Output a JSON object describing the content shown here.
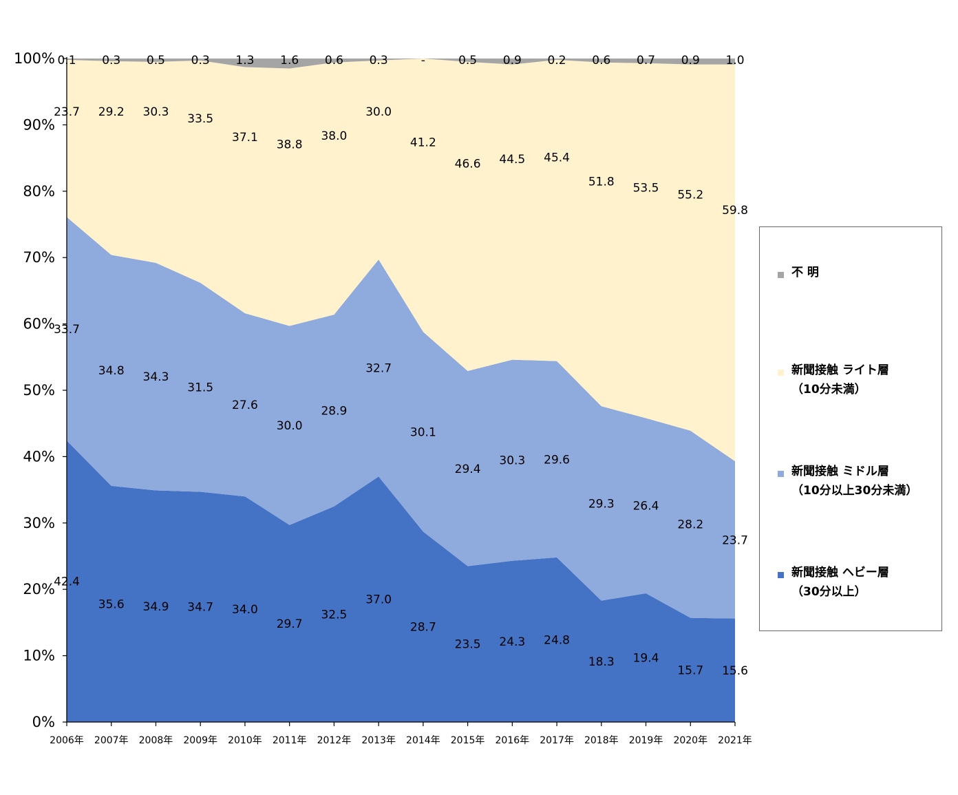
{
  "chart_data": {
    "type": "area",
    "stacked": true,
    "percent": true,
    "title": "",
    "xlabel": "",
    "ylabel": "",
    "ylim": [
      0,
      100
    ],
    "yticks": [
      "0%",
      "10%",
      "20%",
      "30%",
      "40%",
      "50%",
      "60%",
      "70%",
      "80%",
      "90%",
      "100%"
    ],
    "categories": [
      "2006年",
      "2007年",
      "2008年",
      "2009年",
      "2010年",
      "2011年",
      "2012年",
      "2013年",
      "2014年",
      "2015年",
      "2016年",
      "2017年",
      "2018年",
      "2019年",
      "2020年",
      "2021年"
    ],
    "series": [
      {
        "key": "heavy",
        "name": "新聞接触 ヘビー層",
        "name_sub": "（30分以上）",
        "color": "#4472C4",
        "values": [
          42.4,
          35.6,
          34.9,
          34.7,
          34.0,
          29.7,
          32.5,
          37.0,
          28.7,
          23.5,
          24.3,
          24.8,
          18.3,
          19.4,
          15.7,
          15.6
        ],
        "labels": [
          "42.4",
          "35.6",
          "34.9",
          "34.7",
          "34.0",
          "29.7",
          "32.5",
          "37.0",
          "28.7",
          "23.5",
          "24.3",
          "24.8",
          "18.3",
          "19.4",
          "15.7",
          "15.6"
        ]
      },
      {
        "key": "middle",
        "name": "新聞接触 ミドル層",
        "name_sub": "（10分以上30分未満）",
        "color": "#8FAADC",
        "values": [
          33.7,
          34.8,
          34.3,
          31.5,
          27.6,
          30.0,
          28.9,
          32.7,
          30.1,
          29.4,
          30.3,
          29.6,
          29.3,
          26.4,
          28.2,
          23.7
        ],
        "labels": [
          "33.7",
          "34.8",
          "34.3",
          "31.5",
          "27.6",
          "30.0",
          "28.9",
          "32.7",
          "30.1",
          "29.4",
          "30.3",
          "29.6",
          "29.3",
          "26.4",
          "28.2",
          "23.7"
        ]
      },
      {
        "key": "light",
        "name": "新聞接触 ライト層",
        "name_sub": "（10分未満）",
        "color": "#FFF2CC",
        "values": [
          23.7,
          29.2,
          30.3,
          33.5,
          37.1,
          38.8,
          38.0,
          30.0,
          41.2,
          46.6,
          44.5,
          45.4,
          51.8,
          53.5,
          55.2,
          59.8
        ],
        "labels": [
          "23.7",
          "29.2",
          "30.3",
          "33.5",
          "37.1",
          "38.8",
          "38.0",
          "30.0",
          "41.2",
          "46.6",
          "44.5",
          "45.4",
          "51.8",
          "53.5",
          "55.2",
          "59.8"
        ]
      },
      {
        "key": "unknown",
        "name": "不 明",
        "name_sub": "",
        "color": "#A5A5A5",
        "values": [
          0.1,
          0.3,
          0.5,
          0.3,
          1.3,
          1.6,
          0.6,
          0.3,
          0,
          0.5,
          0.9,
          0.2,
          0.6,
          0.7,
          0.9,
          1.0
        ],
        "labels": [
          "0.1",
          "0.3",
          "0.5",
          "0.3",
          "1.3",
          "1.6",
          "0.6",
          "0.3",
          "-",
          "0.5",
          "0.9",
          "0.2",
          "0.6",
          "0.7",
          "0.9",
          "1.0"
        ]
      }
    ],
    "legend": {
      "position": "right",
      "items": [
        {
          "series": "unknown",
          "lines": [
            "不 明"
          ],
          "color": "#A5A5A5"
        },
        {
          "series": "light",
          "lines": [
            "新聞接触 ライト層",
            "（10分未満）"
          ],
          "color": "#FFF2CC"
        },
        {
          "series": "middle",
          "lines": [
            "新聞接触 ミドル層",
            "（10分以上30分未満）"
          ],
          "color": "#8FAADC"
        },
        {
          "series": "heavy",
          "lines": [
            "新聞接触 ヘビー層",
            "（30分以上）"
          ],
          "color": "#4472C4"
        }
      ]
    }
  }
}
